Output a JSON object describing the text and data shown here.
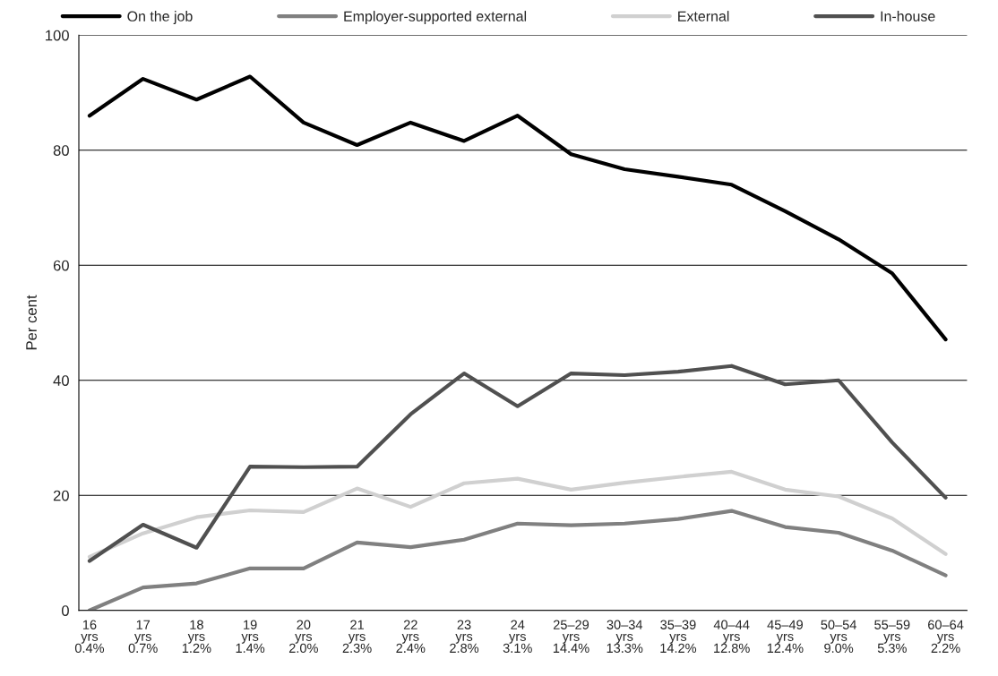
{
  "chart_data": {
    "type": "line",
    "ylabel": "Per cent",
    "categories": [
      "16\nyrs\n0.4%",
      "17\nyrs\n0.7%",
      "18\nyrs\n1.2%",
      "19\nyrs\n1.4%",
      "20\nyrs\n2.0%",
      "21\nyrs\n2.3%",
      "22\nyrs\n2.4%",
      "23\nyrs\n2.8%",
      "24\nyrs\n3.1%",
      "25–29\nyrs\n14.4%",
      "30–34\nyrs\n13.3%",
      "35–39\nyrs\n14.2%",
      "40–44\nyrs\n12.8%",
      "45–49\nyrs\n12.4%",
      "50–54\nyrs\n9.0%",
      "55–59\nyrs\n5.3%",
      "60–64\nyrs\n2.2%"
    ],
    "series": [
      {
        "name": "On the job",
        "color": "#000000",
        "values": [
          86.0,
          92.4,
          88.8,
          92.8,
          84.8,
          80.9,
          84.8,
          81.6,
          86.0,
          79.3,
          76.7,
          75.4,
          74.0,
          69.4,
          64.5,
          58.6,
          47.1
        ]
      },
      {
        "name": "Employer-supported external",
        "color": "#808080",
        "values": [
          0,
          4.0,
          4.7,
          7.3,
          7.3,
          11.8,
          11.0,
          12.3,
          15.1,
          14.8,
          15.1,
          15.9,
          17.3,
          14.5,
          13.5,
          10.4,
          6.1
        ]
      },
      {
        "name": "External",
        "color": "#d0d0d0",
        "values": [
          9.3,
          13.4,
          16.2,
          17.4,
          17.1,
          21.2,
          18.0,
          22.1,
          22.9,
          21.0,
          22.2,
          23.2,
          24.1,
          21.0,
          19.8,
          16.0,
          9.8
        ]
      },
      {
        "name": "In-house",
        "color": "#505050",
        "values": [
          8.6,
          14.9,
          10.9,
          25.0,
          24.9,
          25.0,
          34.1,
          41.2,
          35.5,
          41.2,
          40.9,
          41.5,
          42.5,
          39.3,
          40.0,
          29.2,
          19.6
        ]
      }
    ],
    "ylim": [
      0,
      100
    ],
    "yticks": [
      0,
      20,
      40,
      60,
      80,
      100
    ],
    "grid": "y",
    "legend": "top",
    "marker": "none",
    "line_style": "solid"
  }
}
